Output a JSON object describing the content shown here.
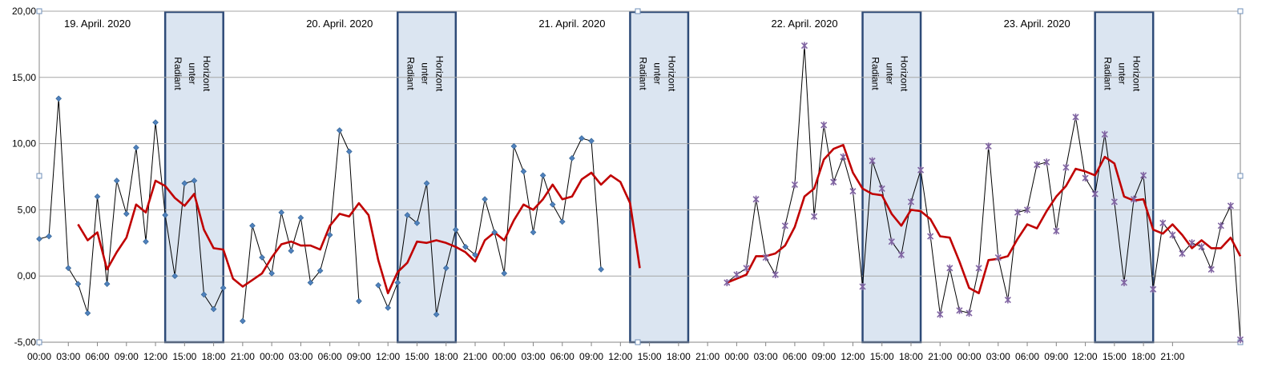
{
  "chart_data": {
    "type": "line",
    "title": "",
    "xlabel": "",
    "ylabel": "",
    "ylim": [
      -5,
      20
    ],
    "yticks": [
      "-5,00",
      "0,00",
      "5,00",
      "10,00",
      "15,00",
      "20,00"
    ],
    "ytick_values": [
      -5,
      0,
      5,
      10,
      15,
      20
    ],
    "grid": true,
    "legend": "none",
    "x_start": "19.04.2020 00:00",
    "x_end": "23.04.2020 23:00",
    "xticks": [
      "00:00",
      "03:00",
      "06:00",
      "09:00",
      "12:00",
      "15:00",
      "18:00",
      "21:00",
      "00:00",
      "03:00",
      "06:00",
      "09:00",
      "12:00",
      "15:00",
      "18:00",
      "21:00",
      "00:00",
      "03:00",
      "06:00",
      "09:00",
      "12:00",
      "15:00",
      "18:00",
      "21:00",
      "00:00",
      "03:00",
      "06:00",
      "09:00",
      "12:00",
      "15:00",
      "18:00",
      "21:00",
      "00:00",
      "03:00",
      "06:00",
      "09:00",
      "12:00",
      "15:00",
      "18:00",
      "21:00"
    ],
    "xtick_hours": [
      0,
      3,
      6,
      9,
      12,
      15,
      18,
      21,
      24,
      27,
      30,
      33,
      36,
      39,
      42,
      45,
      48,
      51,
      54,
      57,
      60,
      63,
      66,
      69,
      72,
      75,
      78,
      81,
      84,
      87,
      90,
      93,
      96,
      99,
      102,
      105,
      108,
      111,
      114,
      117
    ],
    "day_labels": [
      {
        "text": "19. April. 2020",
        "hour": 6
      },
      {
        "text": "20. April. 2020",
        "hour": 31
      },
      {
        "text": "21. April. 2020",
        "hour": 55
      },
      {
        "text": "22. April. 2020",
        "hour": 79
      },
      {
        "text": "23. April. 2020",
        "hour": 103
      }
    ],
    "bands": [
      {
        "label": [
          "Radiant",
          "unter",
          "Horizont"
        ],
        "start_hour": 13,
        "end_hour": 19
      },
      {
        "label": [
          "Radiant",
          "unter",
          "Horizont"
        ],
        "start_hour": 37,
        "end_hour": 43
      },
      {
        "label": [
          "Radiant",
          "unter",
          "Horizont"
        ],
        "start_hour": 61,
        "end_hour": 67
      },
      {
        "label": [
          "Radiant",
          "unter",
          "Horizont"
        ],
        "start_hour": 85,
        "end_hour": 91
      },
      {
        "label": [
          "Radiant",
          "unter",
          "Horizont"
        ],
        "start_hour": 109,
        "end_hour": 115
      }
    ],
    "colors": {
      "raw": "#000000",
      "smooth": "#c00000",
      "marker_a": "#4f81bd",
      "marker_b": "#8064a2",
      "band_fill": "#dbe5f1",
      "band_border": "#2e4b78"
    },
    "series": [
      {
        "marker": "diamond",
        "color": "#4f81bd",
        "points": [
          [
            0,
            2.8
          ],
          [
            1,
            3.0
          ],
          [
            2,
            13.4
          ],
          [
            3,
            0.6
          ],
          [
            4,
            -0.6
          ],
          [
            5,
            -2.8
          ],
          [
            6,
            6.0
          ],
          [
            7,
            -0.6
          ],
          [
            8,
            7.2
          ],
          [
            9,
            4.7
          ],
          [
            10,
            9.7
          ],
          [
            11,
            2.6
          ],
          [
            12,
            11.6
          ],
          [
            13,
            4.6
          ],
          [
            14,
            0.0
          ],
          [
            15,
            7.0
          ],
          [
            16,
            7.2
          ],
          [
            17,
            -1.4
          ],
          [
            18,
            -2.5
          ],
          [
            19,
            -0.9
          ],
          [
            20,
            null
          ],
          [
            21,
            -3.4
          ],
          [
            22,
            3.8
          ],
          [
            23,
            1.4
          ],
          [
            24,
            0.2
          ],
          [
            25,
            4.8
          ],
          [
            26,
            1.9
          ],
          [
            27,
            4.4
          ],
          [
            28,
            -0.5
          ],
          [
            29,
            0.4
          ],
          [
            30,
            3.1
          ],
          [
            31,
            11.0
          ],
          [
            32,
            9.4
          ],
          [
            33,
            -1.9
          ],
          [
            34,
            null
          ],
          [
            35,
            -0.7
          ],
          [
            36,
            -2.4
          ],
          [
            37,
            -0.5
          ],
          [
            38,
            4.6
          ],
          [
            39,
            4.0
          ],
          [
            40,
            7.0
          ],
          [
            41,
            -2.9
          ],
          [
            42,
            0.6
          ],
          [
            43,
            3.5
          ],
          [
            44,
            2.2
          ],
          [
            45,
            1.6
          ],
          [
            46,
            5.8
          ],
          [
            47,
            3.3
          ],
          [
            48,
            0.2
          ],
          [
            49,
            9.8
          ],
          [
            50,
            7.9
          ],
          [
            51,
            3.3
          ],
          [
            52,
            7.6
          ],
          [
            53,
            5.4
          ],
          [
            54,
            4.1
          ],
          [
            55,
            8.9
          ],
          [
            56,
            10.4
          ],
          [
            57,
            10.2
          ],
          [
            58,
            0.5
          ]
        ]
      },
      {
        "marker": "star",
        "color": "#8064a2",
        "points": [
          [
            71,
            -0.5
          ],
          [
            72,
            0.1
          ],
          [
            73,
            0.6
          ],
          [
            74,
            5.8
          ],
          [
            75,
            1.4
          ],
          [
            76,
            0.1
          ],
          [
            77,
            3.8
          ],
          [
            78,
            6.9
          ],
          [
            79,
            17.4
          ],
          [
            80,
            4.5
          ],
          [
            81,
            11.4
          ],
          [
            82,
            7.1
          ],
          [
            83,
            9.0
          ],
          [
            84,
            6.4
          ],
          [
            85,
            -0.8
          ],
          [
            86,
            8.7
          ],
          [
            87,
            6.6
          ],
          [
            88,
            2.6
          ],
          [
            89,
            1.6
          ],
          [
            90,
            5.6
          ],
          [
            91,
            8.0
          ],
          [
            92,
            3.0
          ],
          [
            93,
            -2.9
          ],
          [
            94,
            0.6
          ],
          [
            95,
            -2.6
          ],
          [
            96,
            -2.8
          ],
          [
            97,
            0.6
          ],
          [
            98,
            9.8
          ],
          [
            99,
            1.4
          ],
          [
            100,
            -1.8
          ],
          [
            101,
            4.8
          ],
          [
            102,
            5.0
          ],
          [
            103,
            8.4
          ],
          [
            104,
            8.6
          ],
          [
            105,
            3.4
          ],
          [
            106,
            8.2
          ],
          [
            107,
            12.0
          ],
          [
            108,
            7.4
          ],
          [
            109,
            6.2
          ],
          [
            110,
            10.7
          ],
          [
            111,
            5.6
          ],
          [
            112,
            -0.5
          ],
          [
            113,
            5.8
          ],
          [
            114,
            7.6
          ],
          [
            115,
            -1.0
          ],
          [
            116,
            4.0
          ],
          [
            117,
            3.1
          ],
          [
            118,
            1.7
          ],
          [
            119,
            2.5
          ],
          [
            120,
            2.2
          ],
          [
            121,
            0.5
          ],
          [
            122,
            3.8
          ],
          [
            123,
            5.3
          ],
          [
            124,
            -4.8
          ]
        ]
      },
      {
        "marker": "none",
        "color": "#c00000",
        "points": [
          [
            4,
            3.9
          ],
          [
            5,
            2.7
          ],
          [
            6,
            3.3
          ],
          [
            7,
            0.5
          ],
          [
            8,
            1.8
          ],
          [
            9,
            2.9
          ],
          [
            10,
            5.4
          ],
          [
            11,
            4.8
          ],
          [
            12,
            7.2
          ],
          [
            13,
            6.8
          ],
          [
            14,
            5.9
          ],
          [
            15,
            5.3
          ],
          [
            16,
            6.2
          ],
          [
            17,
            3.5
          ],
          [
            18,
            2.1
          ],
          [
            19,
            2.0
          ],
          [
            20,
            -0.2
          ],
          [
            21,
            -0.8
          ],
          [
            22,
            -0.3
          ],
          [
            23,
            0.2
          ],
          [
            24,
            1.4
          ],
          [
            25,
            2.4
          ],
          [
            26,
            2.6
          ],
          [
            27,
            2.3
          ],
          [
            28,
            2.3
          ],
          [
            29,
            2.0
          ],
          [
            30,
            3.8
          ],
          [
            31,
            4.7
          ],
          [
            32,
            4.5
          ],
          [
            33,
            5.5
          ],
          [
            34,
            4.6
          ],
          [
            35,
            1.2
          ],
          [
            36,
            -1.3
          ],
          [
            37,
            0.3
          ],
          [
            38,
            1.0
          ],
          [
            39,
            2.6
          ],
          [
            40,
            2.5
          ],
          [
            41,
            2.7
          ],
          [
            42,
            2.5
          ],
          [
            43,
            2.2
          ],
          [
            44,
            1.8
          ],
          [
            45,
            1.1
          ],
          [
            46,
            2.7
          ],
          [
            47,
            3.3
          ],
          [
            48,
            2.7
          ],
          [
            49,
            4.2
          ],
          [
            50,
            5.4
          ],
          [
            51,
            5.0
          ],
          [
            52,
            5.8
          ],
          [
            53,
            6.9
          ],
          [
            54,
            5.8
          ],
          [
            55,
            6.0
          ],
          [
            56,
            7.3
          ],
          [
            57,
            7.8
          ],
          [
            58,
            6.9
          ],
          [
            59,
            7.6
          ],
          [
            60,
            7.1
          ],
          [
            61,
            5.5
          ],
          [
            62,
            0.6
          ],
          [
            null,
            null
          ],
          [
            71,
            -0.5
          ],
          [
            72,
            -0.2
          ],
          [
            73,
            0.1
          ],
          [
            74,
            1.5
          ],
          [
            75,
            1.5
          ],
          [
            76,
            1.7
          ],
          [
            77,
            2.3
          ],
          [
            78,
            3.7
          ],
          [
            79,
            6.0
          ],
          [
            80,
            6.6
          ],
          [
            81,
            8.8
          ],
          [
            82,
            9.6
          ],
          [
            83,
            9.9
          ],
          [
            84,
            7.8
          ],
          [
            85,
            6.6
          ],
          [
            86,
            6.2
          ],
          [
            87,
            6.1
          ],
          [
            88,
            4.7
          ],
          [
            89,
            3.8
          ],
          [
            90,
            5.0
          ],
          [
            91,
            4.9
          ],
          [
            92,
            4.3
          ],
          [
            93,
            3.0
          ],
          [
            94,
            2.9
          ],
          [
            95,
            1.1
          ],
          [
            96,
            -0.9
          ],
          [
            97,
            -1.3
          ],
          [
            98,
            1.2
          ],
          [
            99,
            1.3
          ],
          [
            100,
            1.5
          ],
          [
            101,
            2.8
          ],
          [
            102,
            3.9
          ],
          [
            103,
            3.6
          ],
          [
            104,
            4.9
          ],
          [
            105,
            6.0
          ],
          [
            106,
            6.8
          ],
          [
            107,
            8.1
          ],
          [
            108,
            7.9
          ],
          [
            109,
            7.6
          ],
          [
            110,
            9.0
          ],
          [
            111,
            8.5
          ],
          [
            112,
            6.0
          ],
          [
            113,
            5.7
          ],
          [
            114,
            5.8
          ],
          [
            115,
            3.5
          ],
          [
            116,
            3.2
          ],
          [
            117,
            3.9
          ],
          [
            118,
            3.1
          ],
          [
            119,
            2.1
          ],
          [
            120,
            2.7
          ],
          [
            121,
            2.1
          ],
          [
            122,
            2.1
          ],
          [
            123,
            2.9
          ],
          [
            124,
            1.5
          ]
        ]
      }
    ]
  }
}
